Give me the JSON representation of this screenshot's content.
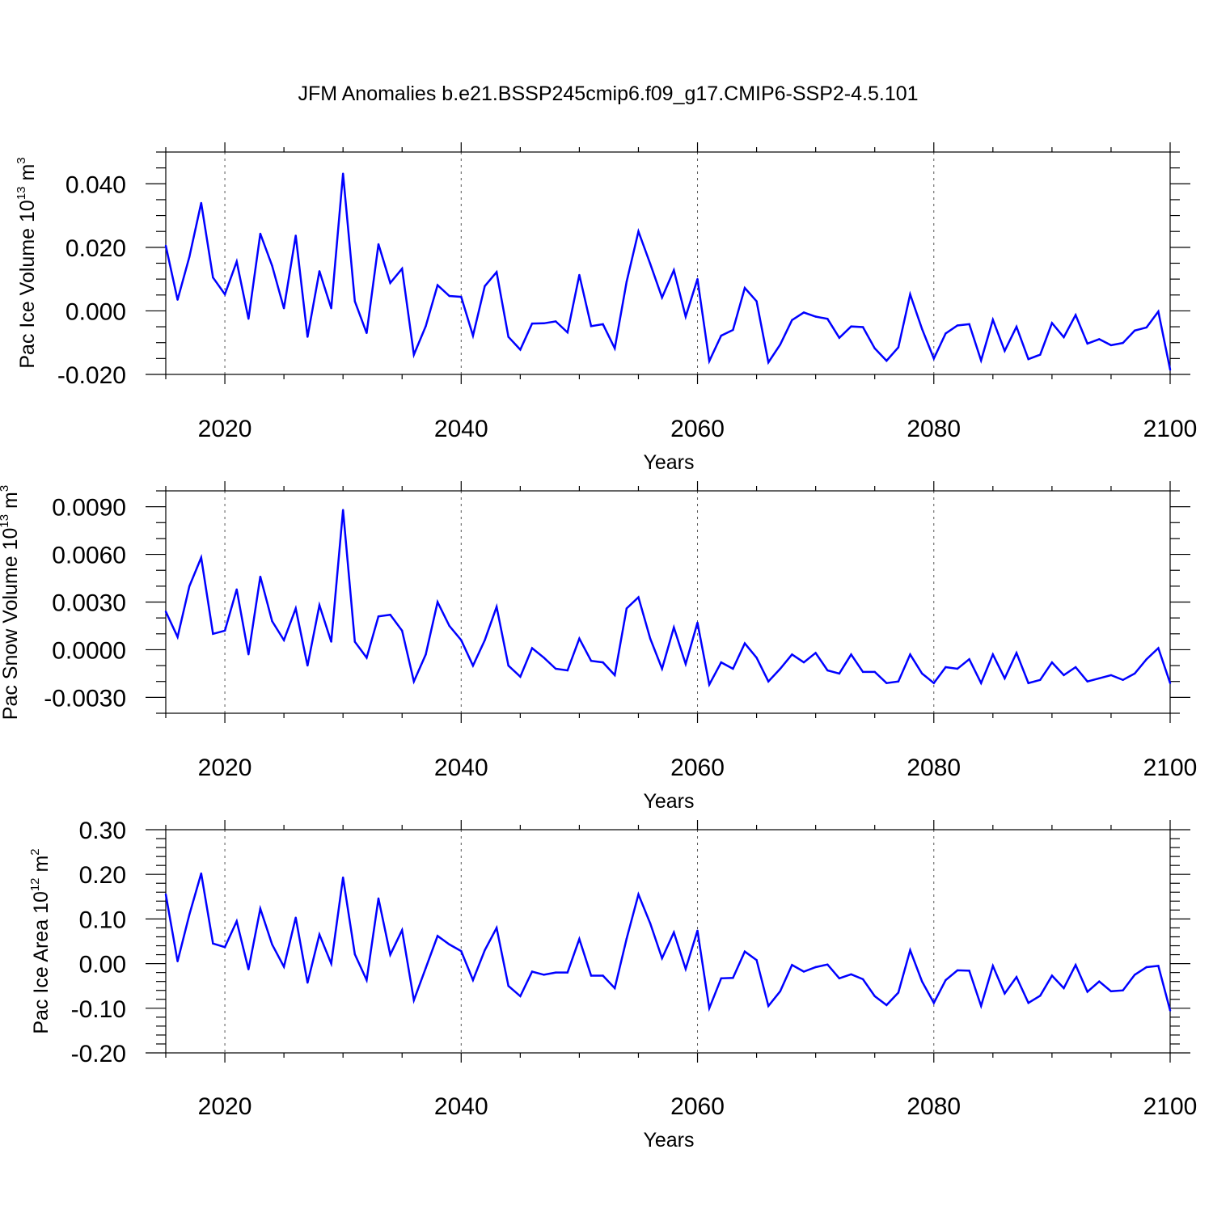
{
  "figure": {
    "title": "JFM Anomalies b.e21.BSSP245cmip6.f09_g17.CMIP6-SSP2-4.5.101",
    "line_color": "#0000ff",
    "grid_color": "#555555"
  },
  "chart_data": [
    {
      "type": "line",
      "xlabel": "Years",
      "ylabel": {
        "text": "Pac Ice Volume 10",
        "exponent": "13",
        "unit": " m",
        "unit_exponent": "3"
      },
      "xlim": [
        2015,
        2100
      ],
      "ylim": [
        -0.02,
        0.05
      ],
      "xticks": [
        2020,
        2040,
        2060,
        2080,
        2100
      ],
      "xtick_labels": [
        "2020",
        "2040",
        "2060",
        "2080",
        "2100"
      ],
      "yticks": [
        -0.02,
        0.0,
        0.02,
        0.04
      ],
      "ytick_labels": [
        "-0.020",
        "0.000",
        "0.020",
        "0.040"
      ],
      "x_minor_step": 5,
      "y_minor_step": 0.005,
      "grid": "vertical dashed at major x ticks",
      "series": [
        {
          "name": "Pac Ice Volume",
          "x": [
            2015,
            2016,
            2017,
            2018,
            2019,
            2020,
            2021,
            2022,
            2023,
            2024,
            2025,
            2026,
            2027,
            2028,
            2029,
            2030,
            2031,
            2032,
            2033,
            2034,
            2035,
            2036,
            2037,
            2038,
            2039,
            2040,
            2041,
            2042,
            2043,
            2044,
            2045,
            2046,
            2047,
            2048,
            2049,
            2050,
            2051,
            2052,
            2053,
            2054,
            2055,
            2056,
            2057,
            2058,
            2059,
            2060,
            2061,
            2062,
            2063,
            2064,
            2065,
            2066,
            2067,
            2068,
            2069,
            2070,
            2071,
            2072,
            2073,
            2074,
            2075,
            2076,
            2077,
            2078,
            2079,
            2080,
            2081,
            2082,
            2083,
            2084,
            2085,
            2086,
            2087,
            2088,
            2089,
            2090,
            2091,
            2092,
            2093,
            2094,
            2095,
            2096,
            2097,
            2098,
            2099,
            2100
          ],
          "values": [
            0.0205,
            0.0035,
            0.017,
            0.034,
            0.0105,
            0.0052,
            0.0155,
            -0.0025,
            0.0243,
            0.0142,
            0.0008,
            0.0237,
            -0.0082,
            0.0125,
            0.0008,
            0.0432,
            0.003,
            -0.007,
            0.021,
            0.0088,
            0.0133,
            -0.0138,
            -0.0048,
            0.0081,
            0.0047,
            0.0044,
            -0.0078,
            0.0078,
            0.0122,
            -0.0082,
            -0.0122,
            -0.004,
            -0.0039,
            -0.0033,
            -0.0068,
            0.0113,
            -0.0048,
            -0.0042,
            -0.0118,
            0.0092,
            0.025,
            0.0148,
            0.0042,
            0.0128,
            -0.0018,
            0.01,
            -0.0158,
            -0.0078,
            -0.006,
            0.0072,
            0.003,
            -0.0162,
            -0.0106,
            -0.0029,
            -0.0005,
            -0.0018,
            -0.0025,
            -0.0085,
            -0.0049,
            -0.0051,
            -0.0118,
            -0.0157,
            -0.0115,
            0.0052,
            -0.0057,
            -0.015,
            -0.0071,
            -0.0046,
            -0.0042,
            -0.0156,
            -0.0028,
            -0.0126,
            -0.005,
            -0.0152,
            -0.0138,
            -0.0038,
            -0.0083,
            -0.0013,
            -0.0103,
            -0.0089,
            -0.0108,
            -0.0101,
            -0.0062,
            -0.0052,
            -0.0002,
            -0.0185
          ]
        }
      ]
    },
    {
      "type": "line",
      "xlabel": "Years",
      "ylabel": {
        "text": "Pac Snow Volume 10",
        "exponent": "13",
        "unit": " m",
        "unit_exponent": "3"
      },
      "xlim": [
        2015,
        2100
      ],
      "ylim": [
        -0.004,
        0.01
      ],
      "xticks": [
        2020,
        2040,
        2060,
        2080,
        2100
      ],
      "xtick_labels": [
        "2020",
        "2040",
        "2060",
        "2080",
        "2100"
      ],
      "yticks": [
        -0.003,
        0.0,
        0.003,
        0.006,
        0.009
      ],
      "ytick_labels": [
        "-0.0030",
        "0.0000",
        "0.0030",
        "0.0060",
        "0.0090"
      ],
      "x_minor_step": 5,
      "y_minor_step": 0.001,
      "grid": "vertical dashed at major x ticks",
      "series": [
        {
          "name": "Pac Snow Volume",
          "x": [
            2015,
            2016,
            2017,
            2018,
            2019,
            2020,
            2021,
            2022,
            2023,
            2024,
            2025,
            2026,
            2027,
            2028,
            2029,
            2030,
            2031,
            2032,
            2033,
            2034,
            2035,
            2036,
            2037,
            2038,
            2039,
            2040,
            2041,
            2042,
            2043,
            2044,
            2045,
            2046,
            2047,
            2048,
            2049,
            2050,
            2051,
            2052,
            2053,
            2054,
            2055,
            2056,
            2057,
            2058,
            2059,
            2060,
            2061,
            2062,
            2063,
            2064,
            2065,
            2066,
            2067,
            2068,
            2069,
            2070,
            2071,
            2072,
            2073,
            2074,
            2075,
            2076,
            2077,
            2078,
            2079,
            2080,
            2081,
            2082,
            2083,
            2084,
            2085,
            2086,
            2087,
            2088,
            2089,
            2090,
            2091,
            2092,
            2093,
            2094,
            2095,
            2096,
            2097,
            2098,
            2099,
            2100
          ],
          "values": [
            0.0024,
            0.0008,
            0.004,
            0.0058,
            0.001,
            0.0012,
            0.0038,
            -0.0003,
            0.0046,
            0.0018,
            0.0006,
            0.0026,
            -0.001,
            0.0028,
            0.0005,
            0.0088,
            0.0005,
            -0.0005,
            0.0021,
            0.0022,
            0.0012,
            -0.002,
            -0.0003,
            0.003,
            0.0015,
            0.0006,
            -0.001,
            0.0006,
            0.0027,
            -0.001,
            -0.0017,
            0.0001,
            -0.0005,
            -0.0012,
            -0.0013,
            0.0007,
            -0.0007,
            -0.0008,
            -0.0016,
            0.0026,
            0.0033,
            0.0007,
            -0.0012,
            0.0014,
            -0.0009,
            0.0017,
            -0.0022,
            -0.0008,
            -0.0012,
            0.0004,
            -0.0005,
            -0.002,
            -0.0012,
            -0.0003,
            -0.0008,
            -0.0002,
            -0.0013,
            -0.0015,
            -0.0003,
            -0.0014,
            -0.0014,
            -0.0021,
            -0.002,
            -0.0003,
            -0.0015,
            -0.0021,
            -0.0011,
            -0.0012,
            -0.0006,
            -0.0021,
            -0.0003,
            -0.0018,
            -0.0002,
            -0.0021,
            -0.0019,
            -0.0008,
            -0.0016,
            -0.0011,
            -0.002,
            -0.0018,
            -0.0016,
            -0.0019,
            -0.0015,
            -0.0006,
            0.0001,
            -0.0021
          ]
        }
      ]
    },
    {
      "type": "line",
      "xlabel": "Years",
      "ylabel": {
        "text": "Pac Ice Area 10",
        "exponent": "12",
        "unit": " m",
        "unit_exponent": "2"
      },
      "xlim": [
        2015,
        2100
      ],
      "ylim": [
        -0.2,
        0.3
      ],
      "xticks": [
        2020,
        2040,
        2060,
        2080,
        2100
      ],
      "xtick_labels": [
        "2020",
        "2040",
        "2060",
        "2080",
        "2100"
      ],
      "yticks": [
        -0.2,
        -0.1,
        0.0,
        0.1,
        0.2,
        0.3
      ],
      "ytick_labels": [
        "-0.20",
        "-0.10",
        "0.00",
        "0.10",
        "0.20",
        "0.30"
      ],
      "x_minor_step": 5,
      "y_minor_step": 0.02,
      "grid": "vertical dashed at major x ticks",
      "series": [
        {
          "name": "Pac Ice Area",
          "x": [
            2015,
            2016,
            2017,
            2018,
            2019,
            2020,
            2021,
            2022,
            2023,
            2024,
            2025,
            2026,
            2027,
            2028,
            2029,
            2030,
            2031,
            2032,
            2033,
            2034,
            2035,
            2036,
            2037,
            2038,
            2039,
            2040,
            2041,
            2042,
            2043,
            2044,
            2045,
            2046,
            2047,
            2048,
            2049,
            2050,
            2051,
            2052,
            2053,
            2054,
            2055,
            2056,
            2057,
            2058,
            2059,
            2060,
            2061,
            2062,
            2063,
            2064,
            2065,
            2066,
            2067,
            2068,
            2069,
            2070,
            2071,
            2072,
            2073,
            2074,
            2075,
            2076,
            2077,
            2078,
            2079,
            2080,
            2081,
            2082,
            2083,
            2084,
            2085,
            2086,
            2087,
            2088,
            2089,
            2090,
            2091,
            2092,
            2093,
            2094,
            2095,
            2096,
            2097,
            2098,
            2099,
            2100
          ],
          "values": [
            0.155,
            0.005,
            0.11,
            0.202,
            0.045,
            0.037,
            0.095,
            -0.013,
            0.123,
            0.043,
            -0.007,
            0.103,
            -0.043,
            0.065,
            0.0,
            0.193,
            0.021,
            -0.037,
            0.146,
            0.02,
            0.075,
            -0.082,
            -0.01,
            0.062,
            0.043,
            0.028,
            -0.037,
            0.03,
            0.08,
            -0.05,
            -0.073,
            -0.018,
            -0.025,
            -0.02,
            -0.02,
            0.055,
            -0.027,
            -0.027,
            -0.055,
            0.056,
            0.155,
            0.09,
            0.012,
            0.07,
            -0.012,
            0.074,
            -0.1,
            -0.033,
            -0.032,
            0.027,
            0.008,
            -0.095,
            -0.062,
            -0.003,
            -0.018,
            -0.008,
            -0.002,
            -0.033,
            -0.024,
            -0.035,
            -0.073,
            -0.093,
            -0.065,
            0.03,
            -0.04,
            -0.088,
            -0.037,
            -0.015,
            -0.016,
            -0.095,
            -0.005,
            -0.067,
            -0.03,
            -0.088,
            -0.072,
            -0.027,
            -0.055,
            -0.003,
            -0.063,
            -0.04,
            -0.062,
            -0.06,
            -0.025,
            -0.008,
            -0.005,
            -0.105
          ]
        }
      ]
    }
  ]
}
